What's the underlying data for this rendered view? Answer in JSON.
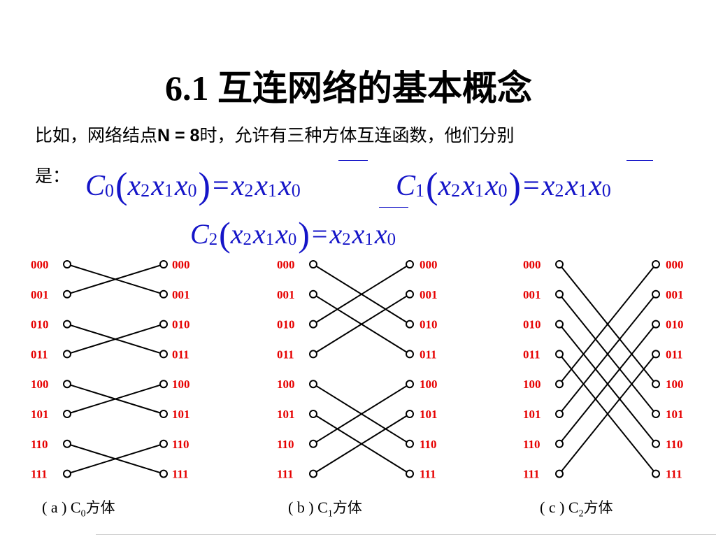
{
  "title": "6.1 互连网络的基本概念",
  "intro": {
    "text_before": "比如，网络结点",
    "bold_part": "N = 8",
    "text_after": "时，允许有三种方体互连函数，他们分别",
    "line2": "是："
  },
  "formulas": {
    "c0": {
      "func": "C",
      "func_sub": "0",
      "lhs": [
        "x2",
        "x1",
        "x0"
      ],
      "rhs": [
        "x2",
        "x1",
        "x0"
      ],
      "complemented_rhs": "x0"
    },
    "c1": {
      "func": "C",
      "func_sub": "1",
      "lhs": [
        "x2",
        "x1",
        "x0"
      ],
      "rhs": [
        "x2",
        "x1",
        "x0"
      ],
      "complemented_rhs": "x1"
    },
    "c2": {
      "func": "C",
      "func_sub": "2",
      "lhs": [
        "x2",
        "x1",
        "x0"
      ],
      "rhs": [
        "x2",
        "x1",
        "x0"
      ],
      "complemented_rhs": "x2"
    }
  },
  "node_labels": [
    "000",
    "001",
    "010",
    "011",
    "100",
    "101",
    "110",
    "111"
  ],
  "node_label_color": "#e60000",
  "formula_color": "#1515c8",
  "diagrams": [
    {
      "name": "c0",
      "caption_pre": "( a ) C",
      "caption_sub": "0",
      "caption_cjk": "方体",
      "flip_bit": 0,
      "connections": [
        [
          0,
          1
        ],
        [
          1,
          0
        ],
        [
          2,
          3
        ],
        [
          3,
          2
        ],
        [
          4,
          5
        ],
        [
          5,
          4
        ],
        [
          6,
          7
        ],
        [
          7,
          6
        ]
      ]
    },
    {
      "name": "c1",
      "caption_pre": "( b ) C",
      "caption_sub": "1",
      "caption_cjk": "方体",
      "flip_bit": 1,
      "connections": [
        [
          0,
          2
        ],
        [
          1,
          3
        ],
        [
          2,
          0
        ],
        [
          3,
          1
        ],
        [
          4,
          6
        ],
        [
          5,
          7
        ],
        [
          6,
          4
        ],
        [
          7,
          5
        ]
      ]
    },
    {
      "name": "c2",
      "caption_pre": "( c ) C",
      "caption_sub": "2",
      "caption_cjk": "方体",
      "flip_bit": 2,
      "connections": [
        [
          0,
          4
        ],
        [
          1,
          5
        ],
        [
          2,
          6
        ],
        [
          3,
          7
        ],
        [
          4,
          0
        ],
        [
          5,
          1
        ],
        [
          6,
          2
        ],
        [
          7,
          3
        ]
      ]
    }
  ]
}
